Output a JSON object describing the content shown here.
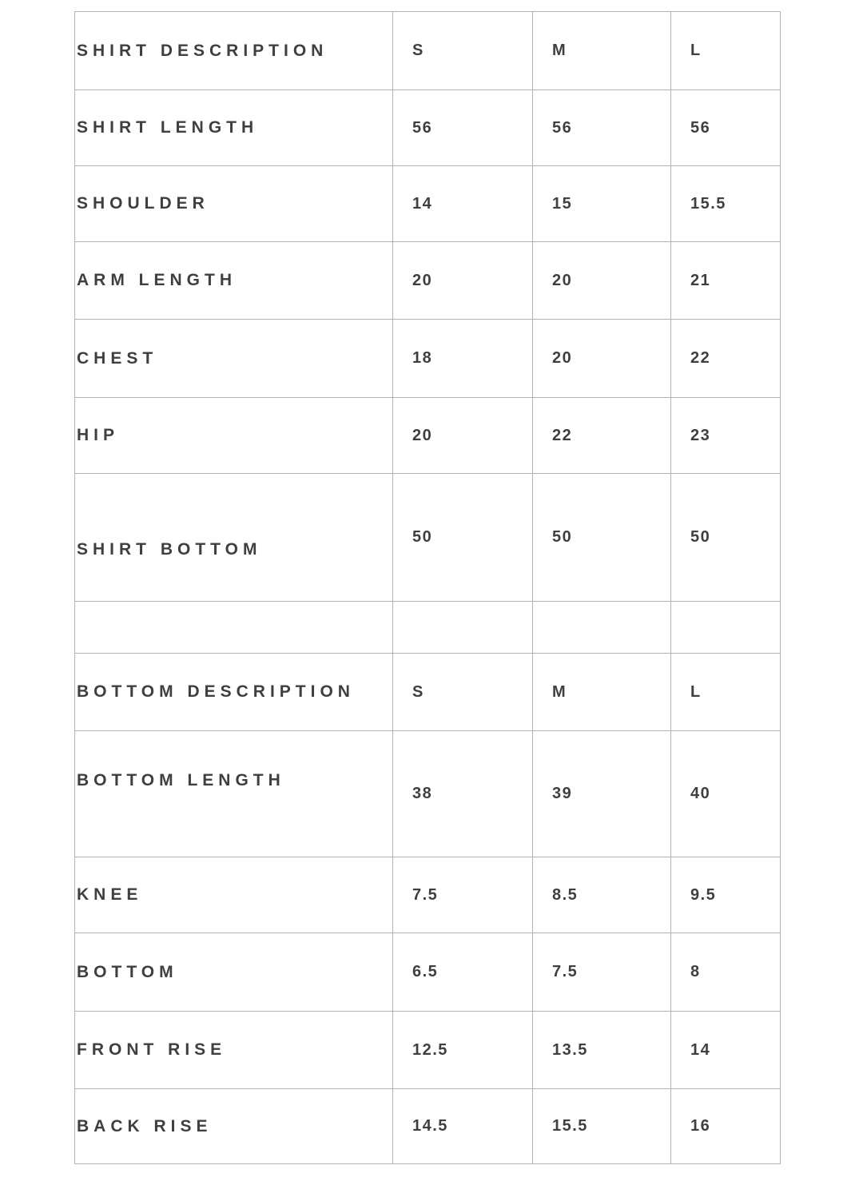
{
  "colors": {
    "background": "#ffffff",
    "text": "#3f3f3f",
    "border": "#b3b3b3"
  },
  "size_chart": {
    "rows": [
      {
        "label": "SHIRT DESCRIPTION",
        "s": "S",
        "m": "M",
        "l": "L"
      },
      {
        "label": "SHIRT LENGTH",
        "s": "56",
        "m": "56",
        "l": "56"
      },
      {
        "label": "SHOULDER",
        "s": "14",
        "m": "15",
        "l": "15.5"
      },
      {
        "label": "ARM LENGTH",
        "s": "20",
        "m": "20",
        "l": "21"
      },
      {
        "label": "CHEST",
        "s": "18",
        "m": "20",
        "l": "22"
      },
      {
        "label": "HIP",
        "s": "20",
        "m": "22",
        "l": "23"
      },
      {
        "label": "SHIRT BOTTOM",
        "s": "50",
        "m": "50",
        "l": "50"
      },
      {
        "label": "",
        "s": "",
        "m": "",
        "l": ""
      },
      {
        "label": "BOTTOM DESCRIPTION",
        "s": "S",
        "m": "M",
        "l": "L"
      },
      {
        "label": "BOTTOM LENGTH",
        "s": "38",
        "m": "39",
        "l": "40"
      },
      {
        "label": "KNEE",
        "s": "7.5",
        "m": "8.5",
        "l": "9.5"
      },
      {
        "label": "BOTTOM",
        "s": "6.5",
        "m": "7.5",
        "l": "8"
      },
      {
        "label": "FRONT RISE",
        "s": "12.5",
        "m": "13.5",
        "l": "14"
      },
      {
        "label": "BACK RISE",
        "s": "14.5",
        "m": "15.5",
        "l": "16"
      }
    ]
  }
}
